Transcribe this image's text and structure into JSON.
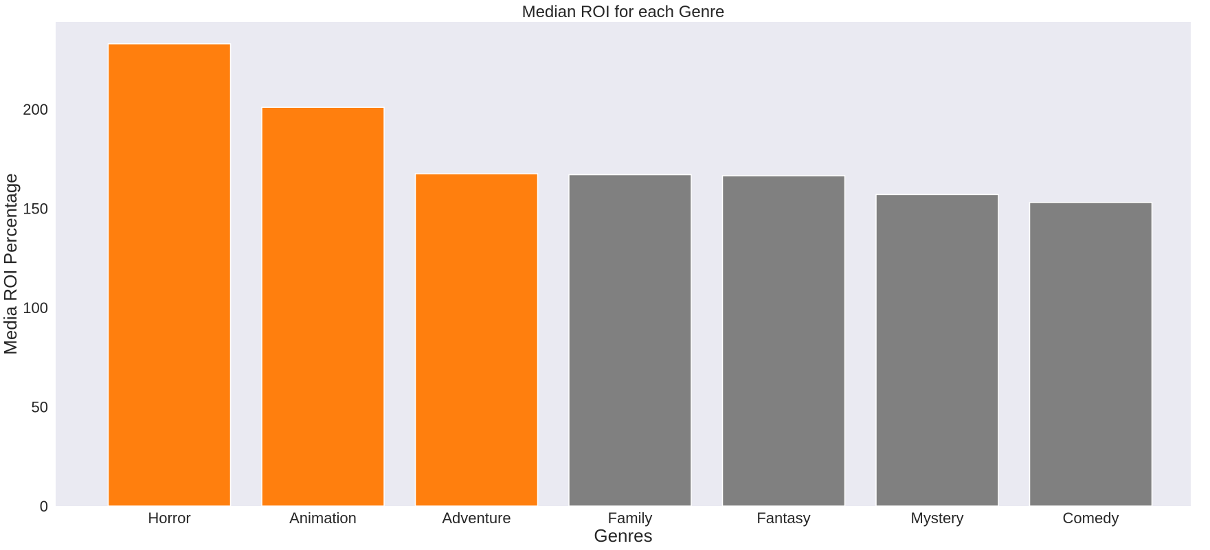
{
  "chart_data": {
    "type": "bar",
    "title": "Median ROI for each Genre",
    "xlabel": "Genres",
    "ylabel": "Media ROI Percentage",
    "categories": [
      "Horror",
      "Animation",
      "Adventure",
      "Family",
      "Fantasy",
      "Mystery",
      "Comedy"
    ],
    "values": [
      233,
      201,
      167.5,
      167,
      166.5,
      157,
      153
    ],
    "highlighted": [
      true,
      true,
      true,
      false,
      false,
      false,
      false
    ],
    "colors": {
      "highlight": "#ff7f0e",
      "default": "#808080",
      "background": "#eaeaf2"
    },
    "ylim": [
      0,
      244
    ],
    "yticks": [
      0,
      50,
      100,
      150,
      200
    ],
    "grid": false,
    "legend": "none"
  }
}
